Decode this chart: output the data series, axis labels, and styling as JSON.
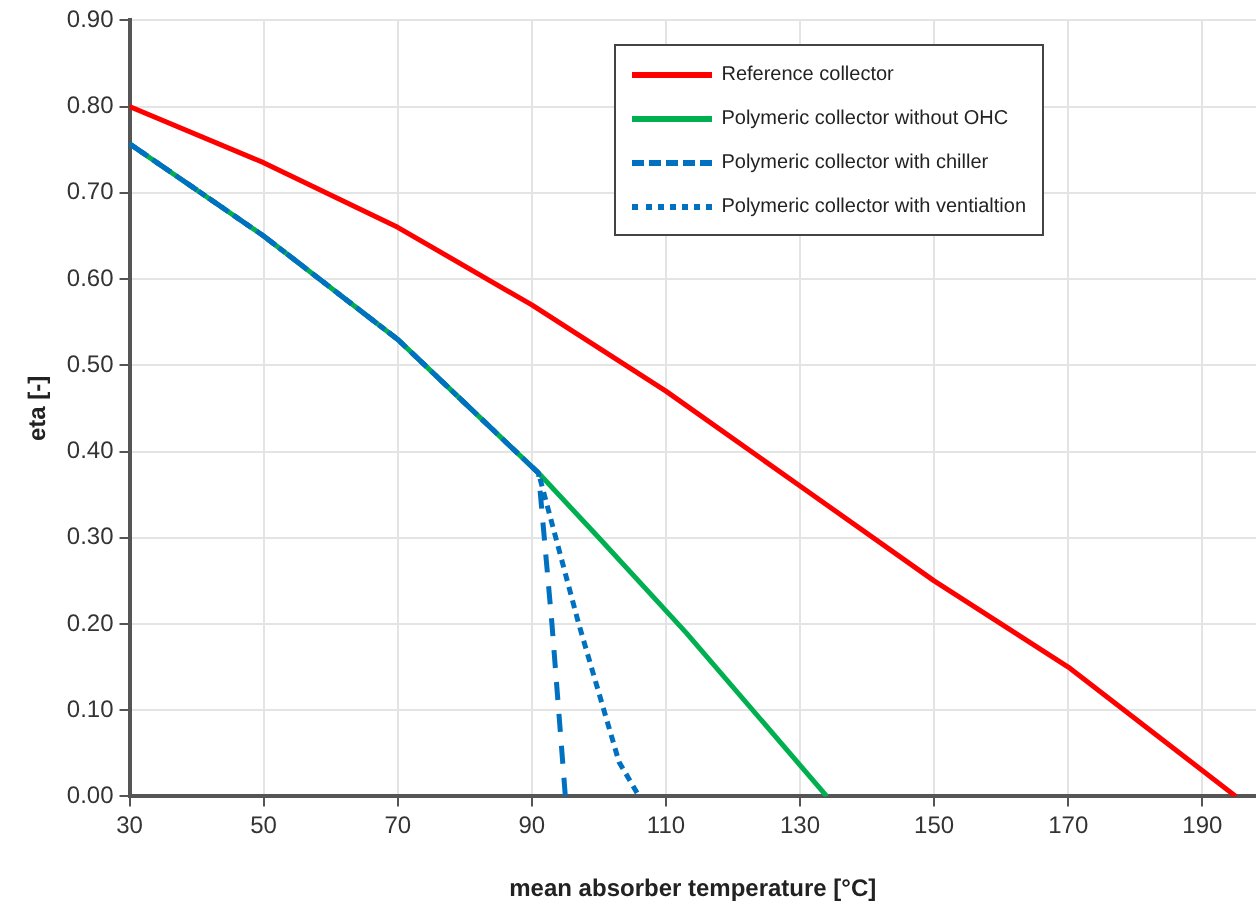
{
  "chart_data": {
    "type": "line",
    "xlabel": "mean absorber temperature [°C]",
    "ylabel": "eta [-]",
    "xlim": [
      30,
      198
    ],
    "xticks": [
      30,
      50,
      70,
      90,
      110,
      130,
      150,
      170,
      190
    ],
    "ylim": [
      0,
      0.9
    ],
    "yticks": [
      {
        "value": 0,
        "label": "0.00"
      },
      {
        "value": 0.1,
        "label": "0.10"
      },
      {
        "value": 0.2,
        "label": "0.20"
      },
      {
        "value": 0.3,
        "label": "0.30"
      },
      {
        "value": 0.4,
        "label": "0.40"
      },
      {
        "value": 0.5,
        "label": "0.50"
      },
      {
        "value": 0.6,
        "label": "0.60"
      },
      {
        "value": 0.7,
        "label": "0.70"
      },
      {
        "value": 0.8,
        "label": "0.80"
      },
      {
        "value": 0.9,
        "label": "0.90"
      }
    ],
    "grid": true,
    "legend": "top right",
    "marker": "none",
    "series": [
      {
        "name": "Reference collector",
        "color": "#ff0000",
        "line_style": "solid",
        "x": [
          30,
          50,
          70,
          90,
          110,
          130,
          150,
          170,
          195
        ],
        "values": [
          0.8,
          0.735,
          0.66,
          0.57,
          0.47,
          0.36,
          0.25,
          0.15,
          0
        ]
      },
      {
        "name": "Polymeric collector without OHC",
        "color": "#00b050",
        "line_style": "solid",
        "x": [
          30,
          50,
          70,
          91,
          100,
          113,
          134
        ],
        "values": [
          0.757,
          0.65,
          0.53,
          0.375,
          0.3,
          0.19,
          0
        ]
      },
      {
        "name": "Polymeric collector with chiller",
        "color": "#0070c0",
        "line_style": "dashed",
        "x": [
          30,
          50,
          70,
          91,
          93,
          95
        ],
        "values": [
          0.757,
          0.65,
          0.53,
          0.375,
          0.2,
          0
        ]
      },
      {
        "name": "Polymeric collector with ventialtion",
        "color": "#0070c0",
        "line_style": "dotted",
        "x": [
          30,
          50,
          70,
          91,
          97,
          103,
          106
        ],
        "values": [
          0.757,
          0.65,
          0.53,
          0.375,
          0.2,
          0.04,
          0
        ]
      }
    ]
  }
}
